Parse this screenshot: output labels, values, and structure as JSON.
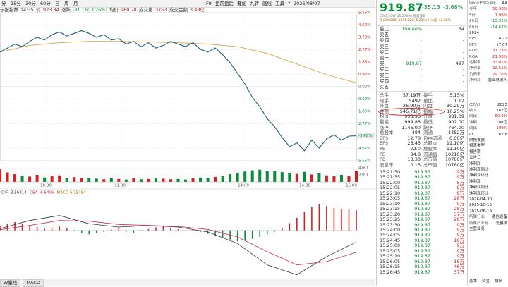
{
  "toolbar": {
    "left": [
      "分",
      "15分",
      "30分",
      "60分",
      "日",
      "周",
      "月"
    ],
    "right": [
      "F9",
      "盘前盘后",
      "叠加",
      "九转",
      "画线",
      "工具",
      "?",
      "2026/08/07"
    ]
  },
  "info": [
    "示报指数",
    "14:35",
    "价",
    "923.84",
    "涨跌",
    "-31.16(-3.26%)",
    "均价",
    "960.78",
    "成交量",
    "3753",
    "成交金额",
    "3.48亿"
  ],
  "chart": {
    "ylim": [
      -5.55,
      5.55
    ],
    "yticks": [
      {
        "value": 5.55,
        "label": "5.55%"
      },
      {
        "value": 4.62,
        "label": "4.62%"
      },
      {
        "value": 3.7,
        "label": "3.70%"
      },
      {
        "value": 2.77,
        "label": "2.77%"
      },
      {
        "value": 1.85,
        "label": "1.85%"
      },
      {
        "value": 0.92,
        "label": "0.92%"
      },
      {
        "value": 0,
        "label": "0.00%"
      },
      {
        "value": -0.92,
        "label": "0.92%"
      },
      {
        "value": -1.85,
        "label": "1.85%"
      },
      {
        "value": -2.77,
        "label": "2.77%"
      },
      {
        "value": -4.62,
        "label": "4.62%"
      },
      {
        "value": -5.55,
        "label": "5.55%"
      }
    ],
    "last_label": "-3.68%",
    "price": [
      2.6,
      2.9,
      3.2,
      3.0,
      3.4,
      3.7,
      3.5,
      3.9,
      4.1,
      3.8,
      4.0,
      4.2,
      4.0,
      3.7,
      3.9,
      3.5,
      3.6,
      3.2,
      3.4,
      3.0,
      3.3,
      2.9,
      3.1,
      3.4,
      3.2,
      3.0,
      3.3,
      2.8,
      2.6,
      2.9,
      2.4,
      1.8,
      1.0,
      0.2,
      -0.8,
      -1.5,
      -2.4,
      -3.0,
      -3.8,
      -4.5,
      -4.2,
      -4.8,
      -4.0,
      -4.6,
      -3.9,
      -3.6,
      -4.0,
      -3.7,
      -3.68
    ],
    "avg": [
      2.6,
      3.1,
      3.3,
      3.4,
      3.4,
      3.35,
      3.3,
      3.2,
      3.0,
      2.5,
      1.7,
      0.9,
      0.3
    ],
    "vlim": [
      0,
      4761
    ],
    "vticks": [
      4761,
      2381
    ],
    "volume": [
      4300,
      3200,
      2600,
      2100,
      1800,
      2400,
      1500,
      1900,
      2200,
      1300,
      1600,
      1200,
      1400,
      1100,
      900,
      1300,
      1000,
      800,
      1200,
      900,
      1000,
      1400,
      1100,
      900,
      1000,
      800,
      1200,
      1500,
      1300,
      1700,
      2100,
      2600,
      3100,
      3500,
      3900,
      4100,
      3600,
      3800,
      3300,
      3000,
      2700,
      3400,
      2500,
      2900,
      2200,
      1900,
      2400,
      2000,
      3753
    ],
    "times": [
      "10:00",
      "11:00",
      "14:00",
      "14:30",
      "15:00"
    ],
    "macd_ylim": [
      -14,
      10
    ],
    "macd": [
      1.5,
      2.0,
      2.5,
      2.0,
      1.5,
      1.0,
      0.5,
      0.8,
      1.2,
      0.6,
      -0.3,
      -0.8,
      -1.2,
      -0.9,
      -0.5,
      0.3,
      0.6,
      -0.4,
      -0.8,
      -0.3,
      0.4,
      0.9,
      1.2,
      0.8,
      0.3,
      -0.2,
      0.4,
      -0.5,
      -1.0,
      -1.6,
      -2.2,
      -2.8,
      -3.3,
      -3.0,
      -2.6,
      -2.0,
      -1.2,
      -0.4,
      0.8,
      2.2,
      3.8,
      5.6,
      7.2,
      8.0,
      7.4,
      6.8,
      6.5,
      6.3,
      6.15494
    ],
    "dif": [
      0.5,
      3.0,
      4.5,
      2.0,
      1.0,
      1.5,
      1.0,
      -0.5,
      -4.0,
      -10.5,
      -13.5,
      -8.0,
      -3.56314
    ],
    "dea": [
      0.2,
      1.5,
      3.0,
      2.8,
      1.8,
      1.5,
      1.2,
      0.3,
      -2.0,
      -6.5,
      -10.5,
      -9.5,
      -6.6406
    ],
    "macd_names": [
      "DIF",
      "DEA",
      "MACD"
    ]
  },
  "tabs": [
    "W量线",
    "MACD"
  ],
  "quote": {
    "price": "919.87",
    "change": "-35.13",
    "pct": "-3.68%",
    "sub": "SZSE_CNY 35.27000 盘前涨跌",
    "sub2": "深(300308) 1091.000(-5.21%) H/A股 +2.66%"
  },
  "book": [
    [
      "委比",
      "100.00%",
      "54"
    ],
    [
      "卖五",
      "-",
      "-"
    ],
    [
      "卖四",
      "-",
      "-"
    ],
    [
      "卖三",
      "-",
      "-"
    ],
    [
      "卖二",
      "-",
      "-"
    ],
    [
      "卖一",
      "-",
      "-"
    ],
    [
      "买一",
      "919.87",
      "497"
    ],
    [
      "买二",
      "-",
      "-"
    ],
    [
      "买三",
      "-",
      "-"
    ],
    [
      "买四",
      "-",
      "-"
    ],
    [
      "买五",
      "-",
      "-"
    ]
  ],
  "stats": [
    [
      "总手",
      "57.19万",
      "换手",
      "5.15%"
    ],
    [
      "现手",
      "5492",
      "量比",
      "1.12"
    ],
    [
      "外盘",
      "26.90万",
      "内盘",
      "30.29万"
    ],
    [
      "金额",
      "546.71亿",
      "振幅",
      "10.25%"
    ],
    [
      "均价",
      "955.96",
      "开盘",
      "981.09"
    ],
    [
      "最高",
      "999.88",
      "最低",
      "902.00"
    ],
    [
      "涨停",
      "1146.00",
      "跌停",
      "764.00"
    ],
    [
      "总股本",
      "484",
      "流通",
      "4452万"
    ],
    [
      "EPS",
      "12.78",
      "自由流通",
      "0.00亿"
    ],
    [
      "EPS",
      "26.45",
      "总股本",
      "11.10亿"
    ],
    [
      "PE",
      "72.0",
      "总股本",
      "11.10亿"
    ],
    [
      "PE",
      "34.8",
      "流通值",
      "10210亿"
    ],
    [
      "PB",
      "13.38",
      "总市值",
      "10780亿"
    ],
    [
      "股息率",
      "0.15",
      "总市值",
      "10760亿"
    ]
  ],
  "trades": [
    [
      "15:21:30",
      "919.87",
      "9万"
    ],
    [
      "15:21:35",
      "919.87",
      "9万"
    ],
    [
      "15:22:00",
      "919.87",
      "5万"
    ],
    [
      "15:22:05",
      "919.87",
      "9万"
    ],
    [
      "15:22:10",
      "919.87",
      "9万"
    ],
    [
      "15:23:05",
      "919.87",
      "28万"
    ],
    [
      "15:23:10",
      "919.87",
      "9万"
    ],
    [
      "15:23:15",
      "919.87",
      "28万"
    ],
    [
      "15:23:20",
      "919.87",
      "37万"
    ],
    [
      "15:23:25",
      "919.87",
      "28万"
    ],
    [
      "15:23:30",
      "919.87",
      "9万"
    ],
    [
      "15:24:00",
      "919.87",
      "9万"
    ],
    [
      "15:24:05",
      "919.87",
      "9万"
    ],
    [
      "15:24:45",
      "919.87",
      "18万"
    ],
    [
      "15:25:00",
      "919.87",
      "9万"
    ],
    [
      "15:25:05",
      "919.87",
      "9万"
    ],
    [
      "15:25:10",
      "919.87",
      "9万"
    ],
    [
      "15:26:05",
      "919.87",
      "18万"
    ],
    [
      "15:26:15",
      "919.87",
      "46万"
    ],
    [
      "15:26:45",
      "919.87",
      "37万"
    ]
  ],
  "side": [
    [
      "Wind ESG评级",
      "AA"
    ],
    [
      "今年",
      "50.98%"
    ],
    [
      "5日",
      "1.98%"
    ],
    [
      "20日",
      "-15.92%"
    ],
    [
      "60日",
      "-14.67%"
    ],
    [
      "2024"
    ],
    [
      "EPS",
      "4.72"
    ],
    [
      "BPS",
      "17.07"
    ],
    [
      "ROE",
      "31.23%"
    ],
    [
      "ROA",
      "21.98%"
    ],
    [
      "毛利率",
      "33.81%"
    ],
    [
      "净利率",
      "22.51%"
    ],
    [
      "负债率",
      "29.70%"
    ],
    [
      "净利润",
      "营业总收入"
    ],
    [
      "(CNY)",
      "2025"
    ],
    [
      "收入",
      "382亿"
    ],
    [
      "同比",
      "60.3%"
    ],
    [
      "净利",
      "108亿"
    ],
    [
      "同比",
      "109%"
    ],
    [
      "PE",
      "62.8"
    ],
    [
      "财报披露"
    ],
    [
      "报表类型"
    ],
    [
      "报告期"
    ],
    [
      "公告日"
    ],
    [
      "净利润"
    ],
    [
      "净利润同比"
    ],
    [
      "净利润环比"
    ],
    [
      "净利润"
    ],
    [
      "净利润同比"
    ],
    [
      "净利润环比"
    ],
    [
      "2026-04-30"
    ],
    [
      "2025-10-13"
    ],
    [
      "2025-06-19"
    ],
    [
      "所属行业",
      "通信设备"
    ],
    [
      "所属产业链",
      "光模块"
    ],
    [
      "主营业务"
    ],
    [
      "基本",
      "资金",
      "快讯"
    ]
  ]
}
